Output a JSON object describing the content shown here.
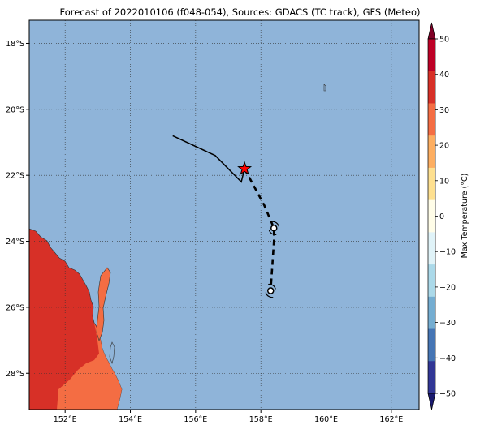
{
  "title": "Forecast of 2022010106 (f048-054), Sources: GDACS (TC track), GFS (Meteo)",
  "map": {
    "lon_range": [
      150.9,
      162.85
    ],
    "lat_range": [
      -29.1,
      -17.3
    ],
    "lon_ticks": [
      {
        "value": 152,
        "label": "152°E"
      },
      {
        "value": 154,
        "label": "154°E"
      },
      {
        "value": 156,
        "label": "156°E"
      },
      {
        "value": 158,
        "label": "158°E"
      },
      {
        "value": 160,
        "label": "160°E"
      },
      {
        "value": 162,
        "label": "162°E"
      }
    ],
    "lat_ticks": [
      {
        "value": -18,
        "label": "18°S"
      },
      {
        "value": -20,
        "label": "20°S"
      },
      {
        "value": -22,
        "label": "22°S"
      },
      {
        "value": -24,
        "label": "24°S"
      },
      {
        "value": -26,
        "label": "26°S"
      },
      {
        "value": -28,
        "label": "28°S"
      }
    ],
    "gridlines": true,
    "ocean_color": "#8fb4d9",
    "land_colors": {
      "hot": "#d73027",
      "warm": "#f46d43"
    },
    "track_past": [
      [
        155.3,
        -20.8
      ],
      [
        156.6,
        -21.4
      ],
      [
        157.4,
        -22.2
      ],
      [
        157.5,
        -21.8
      ]
    ],
    "track_forecast": [
      [
        157.5,
        -21.8
      ],
      [
        158.1,
        -22.9
      ],
      [
        158.4,
        -23.6
      ],
      [
        158.4,
        -24.0
      ],
      [
        158.3,
        -25.5
      ]
    ],
    "current_position": [
      157.5,
      -21.8
    ],
    "forecast_positions": [
      [
        158.4,
        -23.6
      ],
      [
        158.3,
        -25.5
      ]
    ]
  },
  "colorbar": {
    "label": "Max Temperature (°C)",
    "ticks": [
      "50",
      "40",
      "30",
      "20",
      "10",
      "0",
      "−10",
      "−20",
      "−30",
      "−40",
      "−50"
    ],
    "colors": [
      "#800026",
      "#bd0026",
      "#d73027",
      "#f46d43",
      "#fdae61",
      "#fee090",
      "#fffde8",
      "#e0f3f8",
      "#abd9e9",
      "#74add1",
      "#4575b4",
      "#313695",
      "#1a1a6e"
    ]
  }
}
